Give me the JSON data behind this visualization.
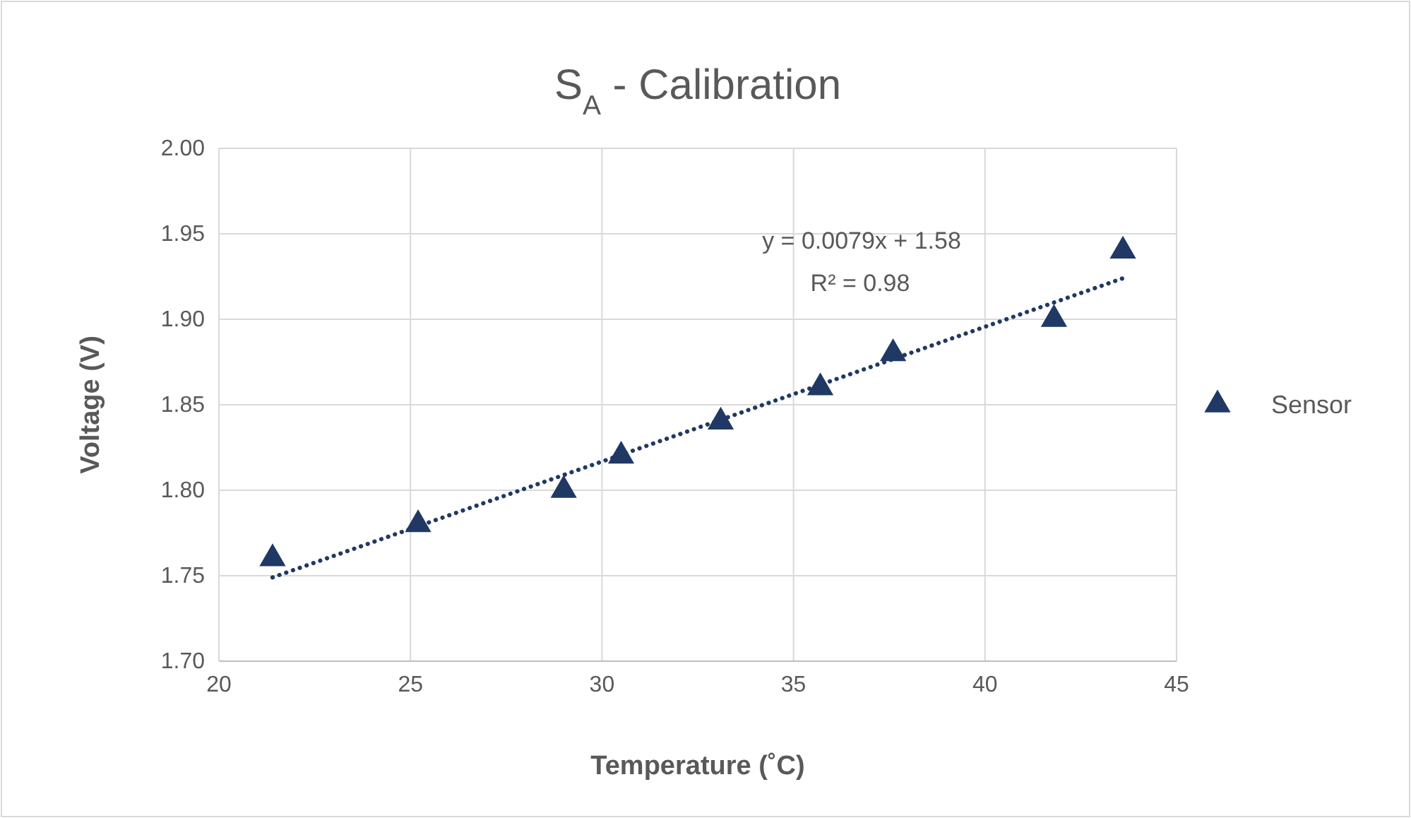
{
  "chart_data": {
    "type": "scatter",
    "title": "S$_{A}$ - Calibration",
    "xlabel": "Temperature (˚C)",
    "ylabel": "Voltage (V)",
    "xlim": [
      20,
      45
    ],
    "xticks": [
      20,
      25,
      30,
      35,
      40,
      45
    ],
    "ylim": [
      1.7,
      2.0
    ],
    "yticks": [
      {
        "value": 1.7,
        "label": "1.70"
      },
      {
        "value": 1.75,
        "label": "1.75"
      },
      {
        "value": 1.8,
        "label": "1.80"
      },
      {
        "value": 1.85,
        "label": "1.85"
      },
      {
        "value": 1.9,
        "label": "1.90"
      },
      {
        "value": 1.95,
        "label": "1.95"
      },
      {
        "value": 2.0,
        "label": "2.00"
      }
    ],
    "grid": true,
    "legend": "right",
    "marker": "triangle",
    "annotations": [
      "y = 0.0079x + 1.58",
      "R² = 0.98"
    ],
    "series": [
      {
        "name": "Sensor",
        "color": "#203864",
        "x": [
          21.4,
          25.2,
          29.0,
          30.5,
          33.1,
          35.7,
          37.6,
          41.8,
          43.6
        ],
        "values": [
          1.76,
          1.78,
          1.8,
          1.82,
          1.84,
          1.86,
          1.88,
          1.9,
          1.94
        ]
      },
      {
        "color": "#203864",
        "type": "line",
        "line_style": "dotted",
        "marker": "none",
        "x": [
          21.4,
          43.6
        ],
        "values": [
          1.749,
          1.924
        ]
      }
    ]
  }
}
